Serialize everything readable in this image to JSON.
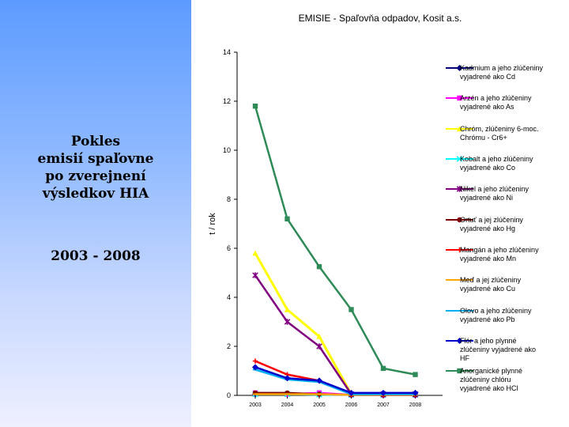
{
  "side": {
    "title_lines": [
      "Pokles",
      "emisií spaľovne",
      "po zverejnení",
      "výsledkov HIA"
    ],
    "years": "2003 - 2008"
  },
  "colors": {
    "panel_top": "#5c9bff",
    "panel_bottom": "#eef0ff"
  },
  "chart_data": {
    "type": "line",
    "title": "EMISIE - Spaľovňa odpadov, Kosit a.s.",
    "ylabel": "t / rok",
    "xlabel": "",
    "ylim": [
      0,
      14
    ],
    "yticks": [
      0,
      2,
      4,
      6,
      8,
      10,
      12,
      14
    ],
    "categories": [
      "2003",
      "2004",
      "2005",
      "2006",
      "2007",
      "2008"
    ],
    "legend_position": "right",
    "grid": false,
    "series": [
      {
        "name": "Kadmium a jeho zlúčeniny vyjadrené ako Cd",
        "color": "#000080",
        "marker": "diamond",
        "values": [
          0.05,
          0.05,
          0.05,
          0.02,
          0.02,
          0.01
        ]
      },
      {
        "name": "Arzén a jeho zlúčeniny vyjadrené ako As",
        "color": "#ff00ff",
        "marker": "square",
        "values": [
          0.1,
          0.05,
          0.1,
          0.02,
          0.01,
          0.01
        ]
      },
      {
        "name": "Chróm, zlúčeniny 6-moc. Chrómu - Cr6+",
        "color": "#ffff00",
        "marker": "triangle",
        "values": [
          5.8,
          3.5,
          2.4,
          0.05,
          0.05,
          0.05
        ]
      },
      {
        "name": "Kobalt a jeho zlúčeniny vyjadrené ako Co",
        "color": "#00ffff",
        "marker": "x",
        "values": [
          0.05,
          0.05,
          0.03,
          0.02,
          0.02,
          0.02
        ]
      },
      {
        "name": "Nikel a jeho zlúčeniny vyjadrené ako Ni",
        "color": "#800080",
        "marker": "star",
        "values": [
          4.9,
          3.0,
          2.0,
          0.05,
          0.05,
          0.05
        ]
      },
      {
        "name": "Ortuť a jej zlúčeniny vyjadrené ako Hg",
        "color": "#800000",
        "marker": "circle",
        "values": [
          0.1,
          0.1,
          0.05,
          0.02,
          0.02,
          0.02
        ]
      },
      {
        "name": "Mangán a jeho zlúčeniny vyjadrené ako Mn",
        "color": "#ff0000",
        "marker": "plus",
        "values": [
          1.4,
          0.85,
          0.6,
          0.05,
          0.05,
          0.05
        ]
      },
      {
        "name": "Meď a jej zlúčeniny vyjadrené ako Cu",
        "color": "#ffa500",
        "marker": "dash",
        "values": [
          0.05,
          0.05,
          0.05,
          0.02,
          0.02,
          0.02
        ]
      },
      {
        "name": "Olovo a jeho zlúčeniny vyjadrené ako Pb",
        "color": "#00b0f0",
        "marker": "dash",
        "values": [
          1.05,
          0.65,
          0.55,
          0.05,
          0.05,
          0.05
        ]
      },
      {
        "name": "Flór a jeho plynné zlúčeniny vyjadrené ako HF",
        "color": "#0000cd",
        "marker": "diamond",
        "values": [
          1.15,
          0.7,
          0.6,
          0.1,
          0.1,
          0.1
        ]
      },
      {
        "name": "Anorganické plynné zlúčeniny chlóru vyjadrené ako HCl",
        "color": "#2e8b57",
        "marker": "square",
        "values": [
          11.8,
          7.2,
          5.25,
          3.5,
          1.1,
          0.85
        ]
      }
    ]
  }
}
